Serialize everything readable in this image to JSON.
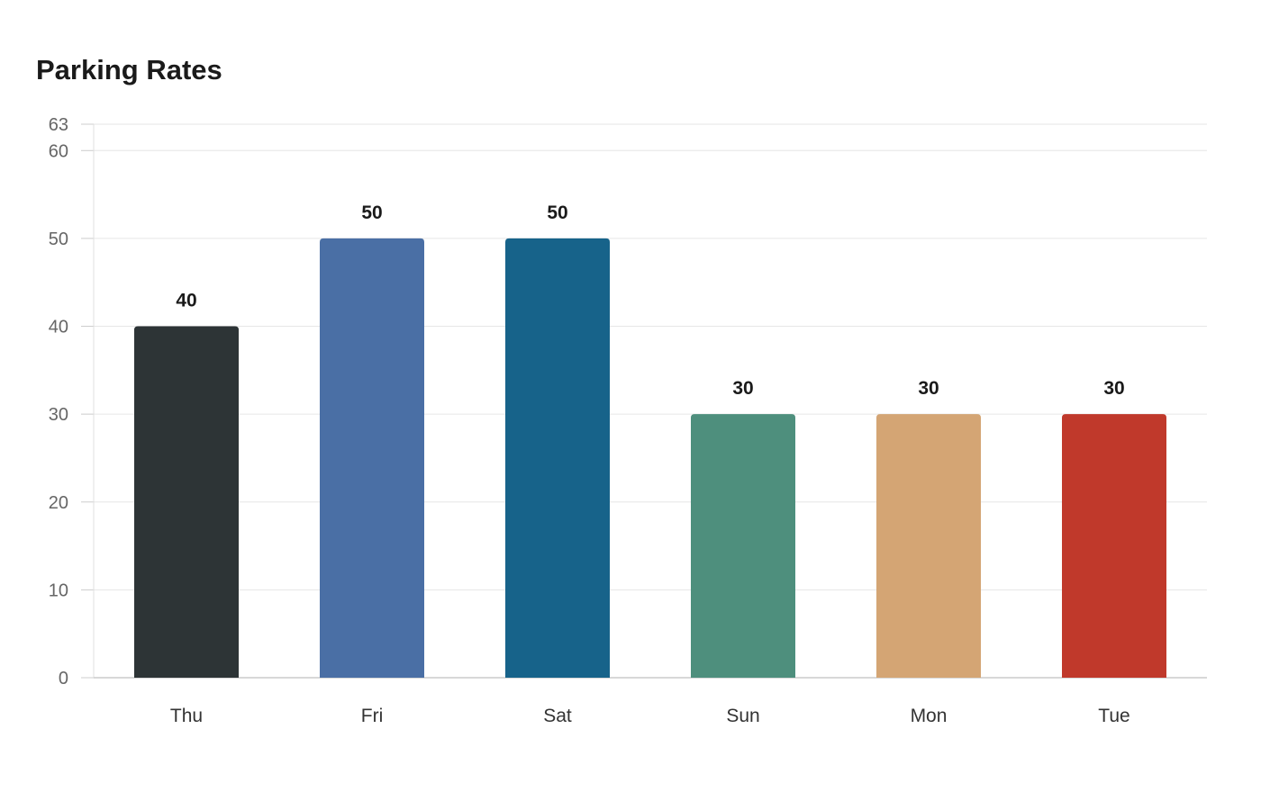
{
  "chart_data": {
    "type": "bar",
    "title": "Parking Rates",
    "xlabel": "",
    "ylabel": "",
    "categories": [
      "Thu",
      "Fri",
      "Sat",
      "Sun",
      "Mon",
      "Tue"
    ],
    "values": [
      40,
      50,
      50,
      30,
      30,
      30
    ],
    "colors": [
      "#2d3436",
      "#4a6fa5",
      "#17638a",
      "#4e8f7d",
      "#d4a574",
      "#c0392b"
    ],
    "ylim": [
      0,
      63
    ],
    "yticks": [
      0,
      10,
      20,
      30,
      40,
      50,
      60,
      63
    ],
    "grid": true,
    "data_labels": true,
    "legend": "none"
  }
}
